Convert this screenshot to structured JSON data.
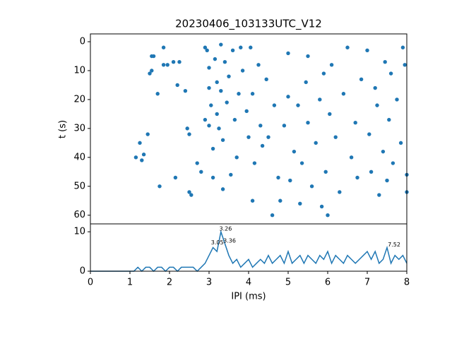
{
  "chart_data": [
    {
      "type": "scatter",
      "title": "20230406_103133UTC_V12",
      "y_label": "t (s)",
      "color": "#1f77b4",
      "x": [
        1.15,
        1.25,
        1.3,
        1.35,
        1.45,
        1.5,
        1.55,
        1.55,
        1.6,
        1.7,
        1.75,
        1.85,
        1.85,
        1.95,
        2.1,
        2.15,
        2.2,
        2.25,
        2.4,
        2.45,
        2.5,
        2.5,
        2.55,
        2.7,
        2.8,
        2.9,
        2.9,
        2.95,
        3.0,
        3.0,
        3.0,
        3.05,
        3.1,
        3.1,
        3.15,
        3.2,
        3.2,
        3.25,
        3.3,
        3.3,
        3.35,
        3.35,
        3.4,
        3.45,
        3.5,
        3.55,
        3.6,
        3.65,
        3.7,
        3.75,
        3.8,
        3.85,
        3.95,
        4.0,
        4.05,
        4.1,
        4.1,
        4.15,
        4.25,
        4.3,
        4.35,
        4.45,
        4.5,
        4.6,
        4.65,
        4.75,
        4.8,
        4.9,
        5.0,
        5.0,
        5.05,
        5.15,
        5.25,
        5.3,
        5.35,
        5.45,
        5.5,
        5.5,
        5.6,
        5.7,
        5.8,
        5.85,
        5.9,
        5.95,
        6.0,
        6.05,
        6.1,
        6.2,
        6.3,
        6.4,
        6.5,
        6.6,
        6.7,
        6.75,
        6.85,
        7.0,
        7.05,
        7.1,
        7.2,
        7.25,
        7.3,
        7.4,
        7.45,
        7.5,
        7.55,
        7.6,
        7.65,
        7.75,
        7.85,
        7.9,
        7.95,
        8.0,
        8.0
      ],
      "values": [
        40,
        35,
        41,
        39,
        32,
        11,
        10,
        5,
        5,
        18,
        50,
        2,
        8,
        8,
        7,
        47,
        15,
        7,
        17,
        30,
        32,
        52,
        53,
        42,
        45,
        2,
        27,
        3,
        9,
        16,
        29,
        22,
        37,
        47,
        6,
        14,
        25,
        30,
        1,
        17,
        34,
        51,
        7,
        21,
        12,
        46,
        3,
        27,
        40,
        18,
        2,
        10,
        24,
        33,
        2,
        18,
        55,
        42,
        8,
        29,
        36,
        13,
        33,
        60,
        22,
        47,
        55,
        29,
        4,
        19,
        48,
        38,
        22,
        56,
        42,
        14,
        5,
        28,
        50,
        35,
        20,
        57,
        11,
        45,
        60,
        25,
        8,
        33,
        52,
        18,
        2,
        40,
        28,
        47,
        13,
        3,
        32,
        45,
        16,
        22,
        53,
        38,
        7,
        48,
        27,
        11,
        42,
        20,
        35,
        2,
        8,
        52,
        46
      ],
      "xlim": [
        0,
        8
      ],
      "ylim": [
        -2.7,
        63
      ],
      "y_inverted": true,
      "yticks": [
        0,
        10,
        20,
        30,
        40,
        50,
        60
      ]
    },
    {
      "type": "line",
      "x_label": "IPI (ms)",
      "color": "#1f77b4",
      "x": [
        0,
        0.1,
        0.2,
        0.3,
        0.4,
        0.5,
        0.6,
        0.7,
        0.8,
        0.9,
        1.0,
        1.1,
        1.2,
        1.3,
        1.4,
        1.5,
        1.6,
        1.7,
        1.8,
        1.9,
        2.0,
        2.1,
        2.2,
        2.3,
        2.4,
        2.5,
        2.6,
        2.7,
        2.8,
        2.9,
        3.0,
        3.1,
        3.2,
        3.3,
        3.4,
        3.5,
        3.6,
        3.7,
        3.8,
        3.9,
        4.0,
        4.1,
        4.2,
        4.3,
        4.4,
        4.5,
        4.6,
        4.7,
        4.8,
        4.9,
        5.0,
        5.1,
        5.2,
        5.3,
        5.4,
        5.5,
        5.6,
        5.7,
        5.8,
        5.9,
        6.0,
        6.1,
        6.2,
        6.3,
        6.4,
        6.5,
        6.6,
        6.7,
        6.8,
        6.9,
        7.0,
        7.1,
        7.2,
        7.3,
        7.4,
        7.5,
        7.6,
        7.7,
        7.8,
        7.9,
        8.0
      ],
      "values": [
        0,
        0,
        0,
        0,
        0,
        0,
        0,
        0,
        0,
        0,
        0,
        0,
        1,
        0,
        1,
        1,
        0,
        1,
        1,
        0,
        1,
        1,
        0,
        1,
        1,
        1,
        1,
        0,
        1,
        2,
        4,
        6,
        5,
        10,
        7,
        4,
        2,
        3,
        1,
        2,
        3,
        1,
        2,
        3,
        2,
        4,
        2,
        3,
        4,
        2,
        5,
        2,
        3,
        4,
        2,
        4,
        3,
        2,
        4,
        3,
        5,
        2,
        4,
        3,
        2,
        4,
        3,
        2,
        3,
        4,
        5,
        3,
        5,
        2,
        3,
        6,
        2,
        4,
        3,
        4,
        2
      ],
      "annotations": [
        {
          "x": 3.26,
          "y": 10,
          "label": "3.26"
        },
        {
          "x": 3.05,
          "y": 6.5,
          "label": "3.05"
        },
        {
          "x": 3.36,
          "y": 7,
          "label": "3.36"
        },
        {
          "x": 7.52,
          "y": 6,
          "label": "7.52"
        }
      ],
      "xlim": [
        0,
        8
      ],
      "ylim": [
        0,
        12
      ],
      "xticks": [
        0,
        1,
        2,
        3,
        4,
        5,
        6,
        7,
        8
      ],
      "yticks": [
        0,
        10
      ]
    }
  ]
}
